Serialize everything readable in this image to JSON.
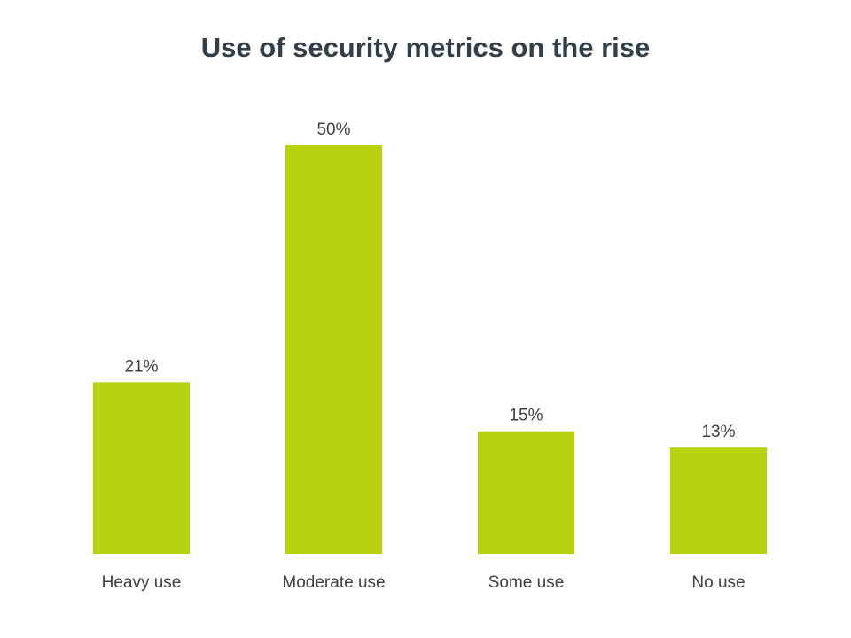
{
  "chart_data": {
    "type": "bar",
    "title": "Use of security metrics on the rise",
    "xlabel": "",
    "ylabel": "",
    "categories": [
      "Heavy use",
      "Moderate use",
      "Some use",
      "No use"
    ],
    "values": [
      21,
      50,
      15,
      13
    ],
    "data_labels": [
      "21%",
      "50%",
      "15%",
      "13%"
    ],
    "ylim": [
      0,
      50
    ],
    "grid": false,
    "legend": "none",
    "bar_color": "#b9d20f"
  }
}
